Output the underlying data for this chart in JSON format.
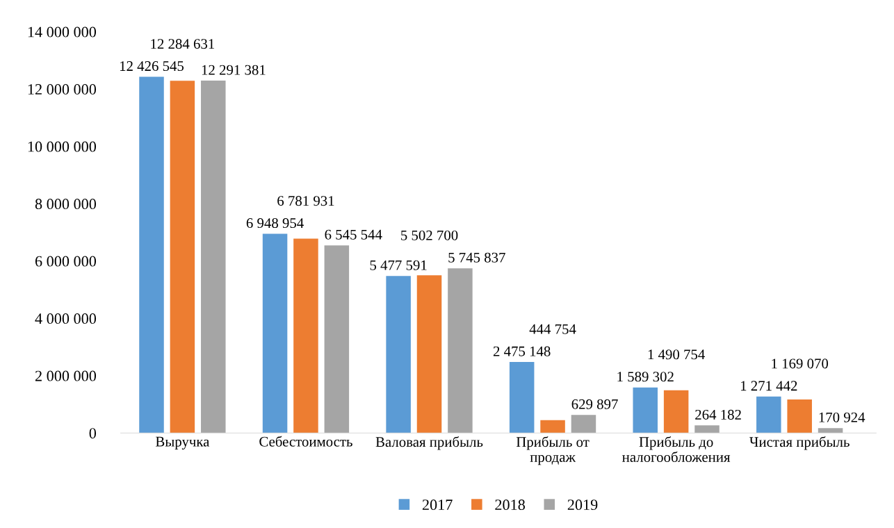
{
  "chart_data": {
    "type": "bar",
    "categories": [
      "Выручка",
      "Себестоимость",
      "Валовая прибыль",
      "Прибыль от\nпродаж",
      "Прибыль до\nналогообложения",
      "Чистая прибыль"
    ],
    "series": [
      {
        "name": "2017",
        "color": "#5b9bd5",
        "values": [
          12426545,
          6948954,
          5477591,
          2475148,
          1589302,
          1271442
        ]
      },
      {
        "name": "2018",
        "color": "#ed7d31",
        "values": [
          12284631,
          6781931,
          5502700,
          444754,
          1490754,
          1169070
        ]
      },
      {
        "name": "2019",
        "color": "#a5a5a5",
        "values": [
          12291381,
          6545544,
          5745837,
          629897,
          264182,
          170924
        ]
      }
    ],
    "ylim": [
      0,
      14000000
    ],
    "yticks": [
      {
        "value": 0,
        "label": "0"
      },
      {
        "value": 2000000,
        "label": "2 000 000"
      },
      {
        "value": 4000000,
        "label": "4 000 000"
      },
      {
        "value": 6000000,
        "label": "6 000 000"
      },
      {
        "value": 8000000,
        "label": "8 000 000"
      },
      {
        "value": 10000000,
        "label": "10 000 000"
      },
      {
        "value": 12000000,
        "label": "12 000 000"
      },
      {
        "value": 14000000,
        "label": "14 000 000"
      }
    ],
    "value_labels": [
      [
        "12 426 545",
        "6 948 954",
        "5 477 591",
        "2 475 148",
        "1 589 302",
        "1 271 442"
      ],
      [
        "12 284 631",
        "6 781 931",
        "5 502 700",
        "444 754",
        "1 490 754",
        "1 169 070"
      ],
      [
        "12 291 381",
        "6 545 544",
        "5 745 837",
        "629 897",
        "264 182",
        "170 924"
      ]
    ],
    "grid": false,
    "legend": "bottom"
  }
}
